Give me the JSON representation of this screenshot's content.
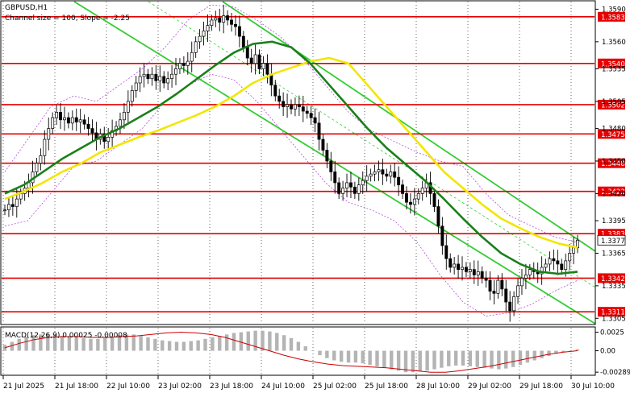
{
  "header": {
    "symbol": "GBPUSD,H1",
    "channel_info": "Channel size = 100, Slope = -2.25"
  },
  "colors": {
    "background": "#ffffff",
    "candles": "#000000",
    "sr_lines": "#e60000",
    "channel": "#33cc33",
    "ma_fast": "#f2e600",
    "ma_slow": "#1a801a",
    "bands": "#b04fd6",
    "macd_hist": "#b4b4b4",
    "macd_signal": "#cc0000",
    "label_bg": "#e60000",
    "current_price_bg": "#ffffff"
  },
  "price_axis": {
    "ticks": [
      "1.3590",
      "1.3560",
      "1.3535",
      "1.3505",
      "1.3480",
      "1.3450",
      "1.3420",
      "1.3395",
      "1.3365",
      "1.3335",
      "1.3305"
    ],
    "range": [
      1.33,
      1.3597
    ]
  },
  "levels": [
    {
      "price": 1.3583,
      "label": "1.3583"
    },
    {
      "price": 1.354,
      "label": "1.3540"
    },
    {
      "price": 1.3502,
      "label": "1.3502"
    },
    {
      "price": 1.3475,
      "label": "1.3475"
    },
    {
      "price": 1.3448,
      "label": "1.3448"
    },
    {
      "price": 1.3422,
      "label": "1.3422"
    },
    {
      "price": 1.3383,
      "label": "1.3383"
    },
    {
      "price": 1.3342,
      "label": "1.3342"
    },
    {
      "price": 1.3311,
      "label": "1.3311"
    }
  ],
  "current_price": {
    "price": 1.3377,
    "label": "1.3377"
  },
  "macd": {
    "title": "MACD(12,26,9) 0.00025 -0.00008",
    "ticks": [
      "0.0025",
      "0.00",
      "-0.00289"
    ],
    "range": [
      -0.0032,
      0.0031
    ]
  },
  "time_axis": {
    "labels": [
      "21 Jul 2025",
      "21 Jul 18:00",
      "22 Jul 10:00",
      "23 Jul 02:00",
      "23 Jul 18:00",
      "24 Jul 10:00",
      "25 Jul 02:00",
      "25 Jul 18:00",
      "28 Jul 10:00",
      "29 Jul 02:00",
      "29 Jul 18:00",
      "30 Jul 10:00"
    ]
  },
  "chart_data": {
    "type": "candlestick",
    "symbol": "GBPUSD",
    "timeframe": "H1",
    "channel": {
      "size": 100,
      "slope": -2.25
    },
    "closes": [
      1.3405,
      1.341,
      1.3408,
      1.3415,
      1.342,
      1.3425,
      1.343,
      1.344,
      1.3448,
      1.3455,
      1.347,
      1.348,
      1.349,
      1.3495,
      1.3488,
      1.349,
      1.3485,
      1.349,
      1.3486,
      1.3488,
      1.3484,
      1.348,
      1.3476,
      1.347,
      1.3475,
      1.3468,
      1.3472,
      1.3478,
      1.3482,
      1.3488,
      1.3495,
      1.3505,
      1.3515,
      1.3522,
      1.3528,
      1.353,
      1.3526,
      1.353,
      1.3524,
      1.3528,
      1.3522,
      1.3526,
      1.353,
      1.3535,
      1.354,
      1.3538,
      1.3542,
      1.355,
      1.356,
      1.3565,
      1.357,
      1.3575,
      1.358,
      1.3582,
      1.3578,
      1.3584,
      1.358,
      1.3576,
      1.3574,
      1.3565,
      1.3555,
      1.3545,
      1.354,
      1.3548,
      1.3535,
      1.354,
      1.353,
      1.352,
      1.351,
      1.3505,
      1.35,
      1.3502,
      1.3498,
      1.3502,
      1.35,
      1.3496,
      1.3494,
      1.349,
      1.3485,
      1.347,
      1.346,
      1.345,
      1.344,
      1.343,
      1.342,
      1.3425,
      1.343,
      1.3426,
      1.342,
      1.3428,
      1.3432,
      1.3436,
      1.3438,
      1.344,
      1.3442,
      1.3438,
      1.3436,
      1.344,
      1.3435,
      1.3428,
      1.342,
      1.3412,
      1.341,
      1.3415,
      1.342,
      1.3425,
      1.343,
      1.342,
      1.3408,
      1.339,
      1.3372,
      1.336,
      1.3352,
      1.3355,
      1.335,
      1.3352,
      1.3348,
      1.335,
      1.3345,
      1.3348,
      1.3342,
      1.334,
      1.333,
      1.3328,
      1.334,
      1.3332,
      1.332,
      1.3312,
      1.3325,
      1.3335,
      1.3342,
      1.3345,
      1.335,
      1.3348,
      1.3346,
      1.3352,
      1.3355,
      1.336,
      1.3358,
      1.3355,
      1.335,
      1.3358,
      1.3365,
      1.337,
      1.3377
    ],
    "ma_fast": [
      1.3415,
      1.3422,
      1.343,
      1.344,
      1.3448,
      1.3458,
      1.3465,
      1.3472,
      1.3478,
      1.3485,
      1.3492,
      1.35,
      1.351,
      1.3522,
      1.353,
      1.3536,
      1.3542,
      1.3545,
      1.354,
      1.352,
      1.35,
      1.348,
      1.346,
      1.344,
      1.3425,
      1.341,
      1.3397,
      1.3388,
      1.338,
      1.3374,
      1.337
    ],
    "ma_slow": [
      1.342,
      1.3428,
      1.344,
      1.3452,
      1.3462,
      1.3472,
      1.348,
      1.349,
      1.35,
      1.3512,
      1.3525,
      1.3538,
      1.355,
      1.3558,
      1.356,
      1.3555,
      1.354,
      1.352,
      1.35,
      1.348,
      1.3462,
      1.3447,
      1.3432,
      1.3415,
      1.3397,
      1.338,
      1.3365,
      1.3355,
      1.3348,
      1.3346,
      1.3348
    ],
    "bands_upper": [
      1.344,
      1.347,
      1.35,
      1.351,
      1.3505,
      1.352,
      1.3535,
      1.3555,
      1.358,
      1.3594,
      1.3592,
      1.358,
      1.3565,
      1.3545,
      1.352,
      1.3495,
      1.3478,
      1.3468,
      1.3458,
      1.345,
      1.3445,
      1.342,
      1.34,
      1.339,
      1.338,
      1.3375
    ],
    "bands_lower": [
      1.339,
      1.3395,
      1.342,
      1.3445,
      1.345,
      1.3465,
      1.348,
      1.3505,
      1.352,
      1.353,
      1.3525,
      1.3505,
      1.348,
      1.3455,
      1.343,
      1.3412,
      1.3405,
      1.3395,
      1.3375,
      1.3345,
      1.332,
      1.3307,
      1.331,
      1.3318,
      1.333,
      1.334
    ],
    "macd_histogram": [
      0.0008,
      0.0012,
      0.0016,
      0.0019,
      0.0021,
      0.0022,
      0.0022,
      0.0021,
      0.002,
      0.0019,
      0.0018,
      0.0017,
      0.0016,
      0.0016,
      0.0017,
      0.0019,
      0.0021,
      0.0022,
      0.0022,
      0.002,
      0.0018,
      0.0016,
      0.0014,
      0.0013,
      0.0012,
      0.0012,
      0.0013,
      0.0014,
      0.0016,
      0.0018,
      0.002,
      0.0022,
      0.0024,
      0.0025,
      0.0026,
      0.0027,
      0.0027,
      0.0026,
      0.0024,
      0.0021,
      0.0017,
      0.0012,
      0.0006,
      0.0,
      -0.0006,
      -0.001,
      -0.0013,
      -0.0015,
      -0.0016,
      -0.0016,
      -0.0017,
      -0.0019,
      -0.0021,
      -0.0023,
      -0.0025,
      -0.0027,
      -0.0029,
      -0.0029,
      -0.0028,
      -0.0027,
      -0.0025,
      -0.0023,
      -0.0021,
      -0.002,
      -0.002,
      -0.0021,
      -0.0022,
      -0.0023,
      -0.0024,
      -0.0025,
      -0.0024,
      -0.0022,
      -0.0019,
      -0.0016,
      -0.0013,
      -0.001,
      -0.0007,
      -0.0004,
      -0.0002,
      0.0,
      0.0002
    ],
    "macd_signal": [
      0.0004,
      0.001,
      0.0015,
      0.0018,
      0.0019,
      0.0019,
      0.0018,
      0.0018,
      0.0019,
      0.002,
      0.0022,
      0.0024,
      0.0025,
      0.0024,
      0.0022,
      0.0018,
      0.0012,
      0.0006,
      0.0,
      -0.0006,
      -0.0011,
      -0.0015,
      -0.0018,
      -0.002,
      -0.0021,
      -0.0022,
      -0.0023,
      -0.0025,
      -0.0027,
      -0.0029,
      -0.0029,
      -0.0027,
      -0.0024,
      -0.0021,
      -0.0017,
      -0.0013,
      -0.0009,
      -0.0005,
      -0.0002,
      0.0
    ]
  }
}
